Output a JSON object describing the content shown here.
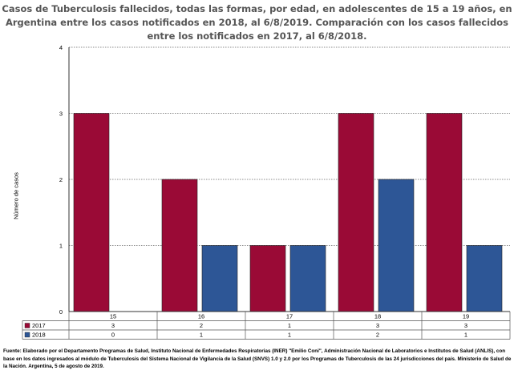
{
  "title_lines": [
    "Casos de Tuberculosis fallecidos, todas las formas, por edad, en adolescentes de 15 a 19 años, en",
    "Argentina entre los casos notificados en 2018, al 6/8/2019. Comparación con los casos fallecidos",
    "entre los notificados en 2017, al 6/8/2018."
  ],
  "source_note": "Fuente: Elaborado por el Departamento Programas de Salud, Instituto Nacional de Enfermedades Respiratorias (INER) \"Emilio Coni\", Administración Nacional de Laboratorios e Institutos de Salud (ANLIS), con base en los datos ingresados al módulo de Tuberculosis del Sistema Nacional de Vigilancia de la Salud (SNVS) 1.0 y 2.0 por los Programas de Tuberculosis de las 24 jurisdicciones del país. Ministerio de Salud de la Nación. Argentina, 5 de agosto de 2019.",
  "chart_data": {
    "type": "bar",
    "title": "Casos de Tuberculosis fallecidos, todas las formas, por edad, en adolescentes de 15 a 19 años, en Argentina entre los casos notificados en 2018, al 6/8/2019. Comparación con los casos fallecidos entre los notificados en 2017, al 6/8/2018.",
    "xlabel": "",
    "ylabel": "Número de casos",
    "categories": [
      "15",
      "16",
      "17",
      "18",
      "19"
    ],
    "series": [
      {
        "name": "2017",
        "values": [
          3,
          2,
          1,
          3,
          3
        ],
        "table_values": [
          "3",
          "2",
          "1",
          "3",
          "3"
        ],
        "color": "#9a0a36"
      },
      {
        "name": "2018",
        "values": [
          0,
          1,
          1,
          2,
          1
        ],
        "table_values": [
          "0",
          "1",
          "1",
          "2",
          "1"
        ],
        "color": "#2d5696"
      }
    ],
    "ylim": [
      0,
      4
    ],
    "yticks": [
      "0",
      "1",
      "2",
      "3",
      "4"
    ],
    "grid": true,
    "legend": "data-table"
  }
}
